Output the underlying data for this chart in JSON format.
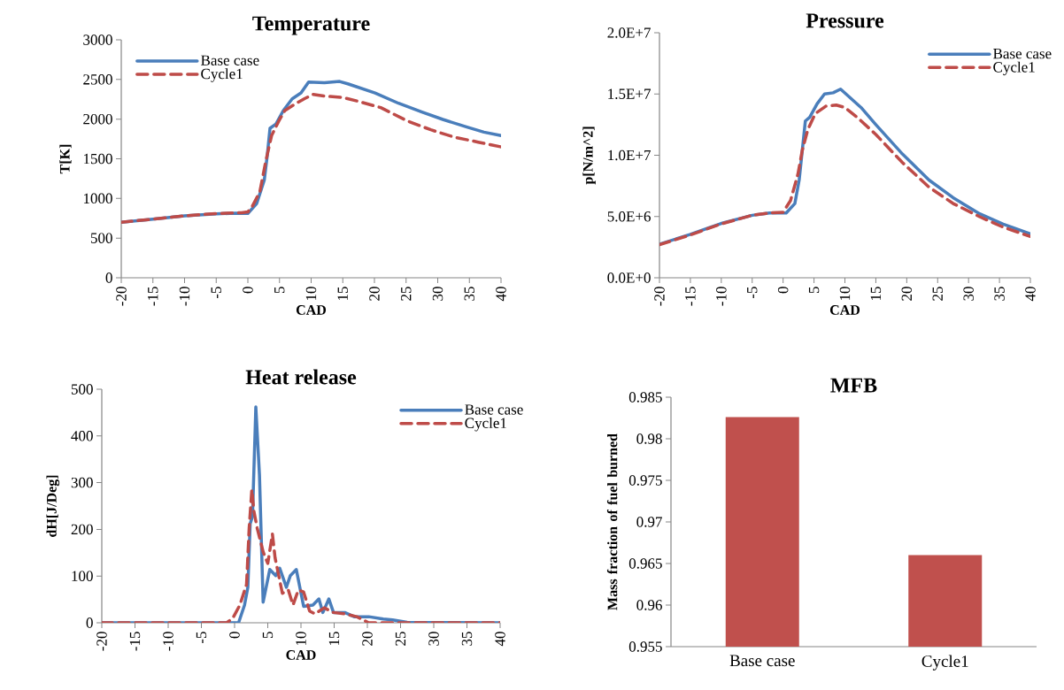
{
  "chart_data": [
    {
      "type": "line",
      "title": "Temperature",
      "xlabel": "CAD",
      "ylabel": "T[K]",
      "xlim": [
        -20,
        40
      ],
      "xticks": [
        -20,
        -15,
        -10,
        -5,
        0,
        5,
        10,
        15,
        20,
        25,
        30,
        35,
        40
      ],
      "ylim": [
        0,
        3000
      ],
      "yticks": [
        0,
        500,
        1000,
        1500,
        2000,
        2500,
        3000
      ],
      "grid": false,
      "legend": "top left",
      "marker": "none",
      "series": [
        {
          "name": "Base case",
          "color": "#4a7ebb",
          "line_style": "solid",
          "x": [
            -20,
            -15,
            -10,
            -5,
            -2,
            0,
            1.4,
            2.6,
            3.05,
            3.5,
            4.45,
            5.6,
            7.0,
            8.4,
            9.6,
            12.1,
            14.5,
            15.9,
            20.1,
            23.8,
            27.5,
            30.8,
            34.5,
            37.3,
            40
          ],
          "values": [
            700,
            740,
            780,
            805,
            815,
            810,
            937,
            1234,
            1531,
            1885,
            1940,
            2108,
            2256,
            2330,
            2468,
            2460,
            2475,
            2442,
            2330,
            2200,
            2089,
            1996,
            1903,
            1836,
            1792
          ]
        },
        {
          "name": "Cycle1",
          "color": "#be4b48",
          "line_style": "dashed",
          "x": [
            -20,
            -15,
            -10,
            -5,
            -1,
            0,
            0.7,
            1.9,
            2.8,
            3.75,
            4.9,
            5.85,
            7.5,
            8.9,
            10.3,
            12.1,
            14.9,
            17.7,
            21.0,
            25.2,
            28.9,
            32.6,
            36.4,
            40
          ],
          "values": [
            700,
            740,
            780,
            810,
            820,
            830,
            900,
            1085,
            1457,
            1792,
            1977,
            2108,
            2193,
            2256,
            2312,
            2290,
            2275,
            2219,
            2145,
            1977,
            1866,
            1773,
            1710,
            1650
          ]
        }
      ]
    },
    {
      "type": "line",
      "title": "Pressure",
      "xlabel": "CAD",
      "ylabel": "p[N/m^2]",
      "xlim": [
        -20,
        40
      ],
      "xticks": [
        -20,
        -15,
        -10,
        -5,
        0,
        5,
        10,
        15,
        20,
        25,
        30,
        35,
        40
      ],
      "ylim": [
        0,
        20000000
      ],
      "yticks": [
        {
          "value": 0,
          "label": "0.0E+0"
        },
        {
          "value": 5000000,
          "label": "5.0E+6"
        },
        {
          "value": 10000000,
          "label": "1.0E+7"
        },
        {
          "value": 15000000,
          "label": "1.5E+7"
        },
        {
          "value": 20000000,
          "label": "2.0E+7"
        }
      ],
      "grid": false,
      "legend": "top right",
      "marker": "none",
      "series": [
        {
          "name": "Base case",
          "color": "#4a7ebb",
          "line_style": "solid",
          "x": [
            -20,
            -15.1,
            -10.1,
            -5,
            -2.2,
            0.5,
            1.9,
            2.6,
            3.6,
            4.3,
            5.5,
            6.7,
            8.1,
            9.3,
            12.6,
            15,
            19.3,
            23.6,
            27.5,
            31.8,
            35.6,
            40
          ],
          "values": [
            2740000,
            3530000,
            4420000,
            5100000,
            5290000,
            5290000,
            6060000,
            7980000,
            12800000,
            13100000,
            14200000,
            15000000,
            15100000,
            15400000,
            13900000,
            12500000,
            10100000,
            7980000,
            6540000,
            5220000,
            4380000,
            3580000
          ]
        },
        {
          "name": "Cycle1",
          "color": "#be4b48",
          "line_style": "dashed",
          "x": [
            -20,
            -15,
            -10,
            -5,
            -2,
            0,
            1.2,
            2.4,
            3.1,
            4.0,
            5.2,
            6.9,
            8.6,
            10.0,
            12.2,
            15.0,
            19.3,
            23.6,
            27.5,
            31.8,
            35.6,
            40
          ],
          "values": [
            2700000,
            3500000,
            4400000,
            5100000,
            5300000,
            5350000,
            6300000,
            8460000,
            10400000,
            12100000,
            13400000,
            14000000,
            14100000,
            13900000,
            13000000,
            11700000,
            9400000,
            7400000,
            6060000,
            4980000,
            4130000,
            3370000
          ]
        }
      ]
    },
    {
      "type": "line",
      "title": "Heat release",
      "xlabel": "CAD",
      "ylabel": "dH[J/Deg]",
      "xlim": [
        -20,
        40
      ],
      "xticks": [
        -20,
        -15,
        -10,
        -5,
        0,
        5,
        10,
        15,
        20,
        25,
        30,
        35,
        40
      ],
      "ylim": [
        0,
        500
      ],
      "yticks": [
        0,
        100,
        200,
        300,
        400,
        500
      ],
      "grid": false,
      "legend": "top right",
      "marker": "none",
      "series": [
        {
          "name": "Base case",
          "color": "#4a7ebb",
          "line_style": "solid",
          "x": [
            -20,
            0,
            0.6,
            1.5,
            2.0,
            2.35,
            2.7,
            3.2,
            3.75,
            4.3,
            5.3,
            6.2,
            6.8,
            7.8,
            8.4,
            9.3,
            10.4,
            11.8,
            12.7,
            13.3,
            14.2,
            14.9,
            16.6,
            18.0,
            20.2,
            22.4,
            23.8,
            26,
            40
          ],
          "values": [
            0,
            0,
            0,
            38,
            76,
            212,
            228,
            462,
            316,
            44,
            114,
            101,
            117,
            76,
            101,
            114,
            35,
            38,
            51,
            22,
            51,
            22,
            22,
            13,
            13,
            8,
            6,
            1,
            0
          ]
        },
        {
          "name": "Cycle1",
          "color": "#be4b48",
          "line_style": "dashed",
          "x": [
            -20,
            -1.2,
            -0.3,
            0.8,
            1.8,
            2.2,
            2.6,
            2.9,
            3.4,
            4.3,
            5.0,
            5.7,
            6.1,
            7.2,
            8.1,
            8.8,
            9.6,
            10.4,
            11.3,
            12.1,
            13.5,
            14.9,
            16.6,
            18.4,
            20.2,
            40
          ],
          "values": [
            0,
            0,
            9,
            38,
            82,
            203,
            285,
            240,
            203,
            152,
            127,
            190,
            139,
            63,
            70,
            38,
            70,
            66,
            25,
            19,
            32,
            22,
            19,
            13,
            0,
            0
          ]
        }
      ]
    },
    {
      "type": "bar",
      "title": "MFB",
      "ylabel": "Mass fraction of fuel burned",
      "categories": [
        "Base case",
        "Cycle1"
      ],
      "values": [
        0.9826,
        0.966
      ],
      "color": "#c0504d",
      "ylim": [
        0.955,
        0.985
      ],
      "yticks": [
        0.955,
        0.96,
        0.965,
        0.97,
        0.975,
        0.98,
        0.985
      ],
      "grid": false,
      "legend": false
    }
  ]
}
